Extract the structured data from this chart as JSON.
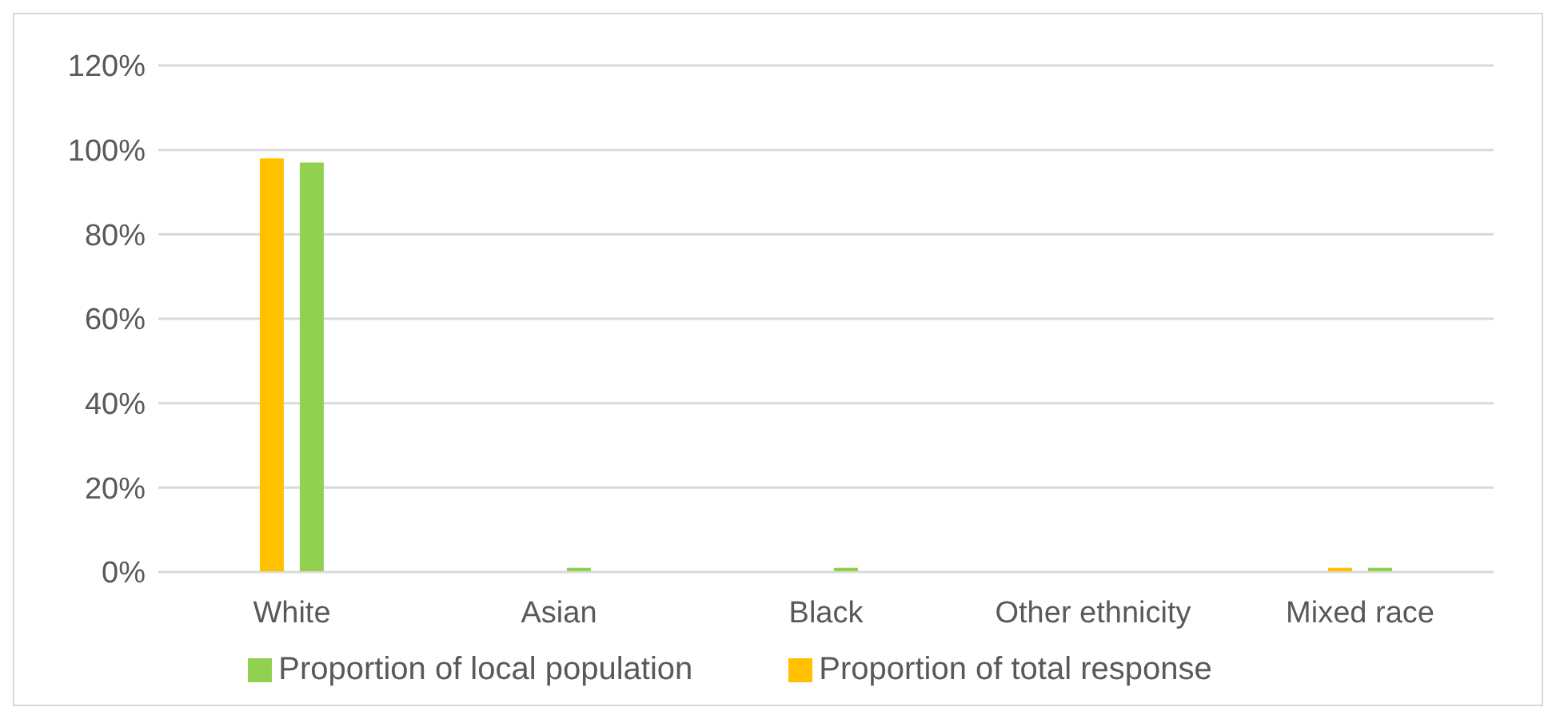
{
  "chart_data": {
    "type": "bar",
    "categories": [
      "White",
      "Asian",
      "Black",
      "Other ethnicity",
      "Mixed race"
    ],
    "series": [
      {
        "name": "Proportion of total response",
        "color": "#ffc000",
        "values": [
          98,
          0,
          0,
          0,
          1
        ]
      },
      {
        "name": "Proportion of local population",
        "color": "#92d050",
        "values": [
          97,
          1,
          1,
          0,
          1
        ]
      }
    ],
    "ylim": [
      0,
      120
    ],
    "yticks": [
      {
        "value": 0,
        "label": "0%"
      },
      {
        "value": 20,
        "label": "20%"
      },
      {
        "value": 40,
        "label": "40%"
      },
      {
        "value": 60,
        "label": "60%"
      },
      {
        "value": 80,
        "label": "80%"
      },
      {
        "value": 100,
        "label": "100%"
      },
      {
        "value": 120,
        "label": "120%"
      }
    ],
    "grid": "y",
    "legend": "bottom"
  }
}
